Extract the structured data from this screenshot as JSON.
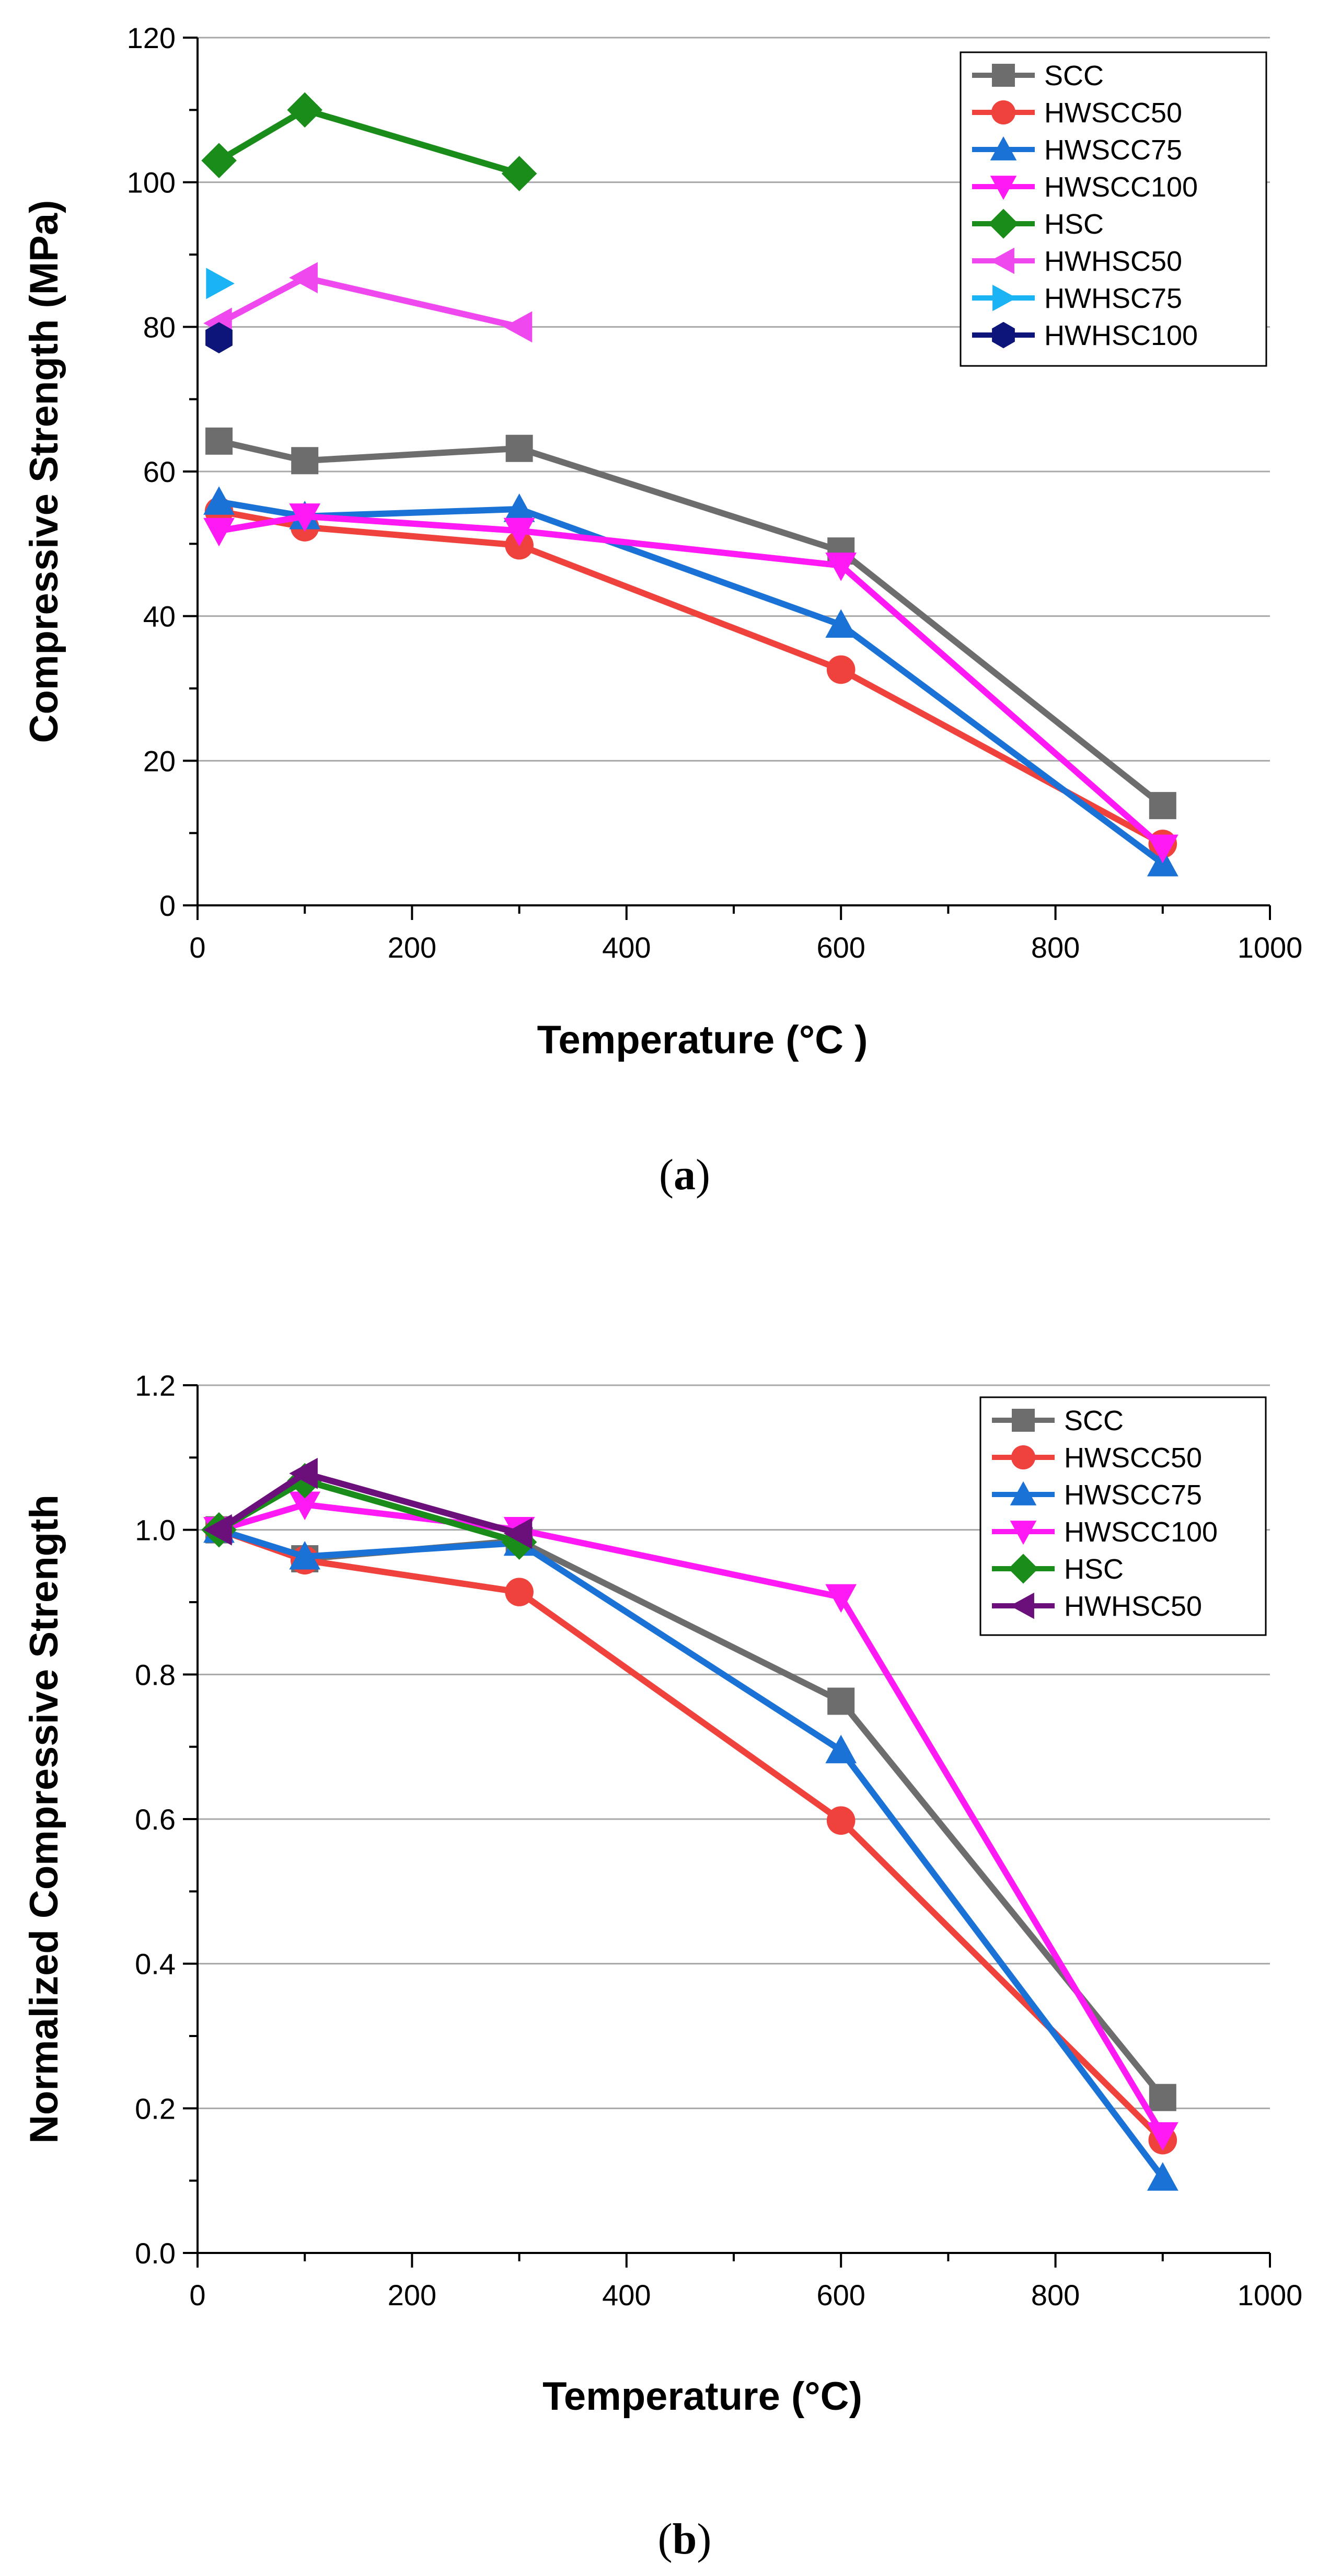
{
  "chart_data": [
    {
      "id": "a",
      "type": "line",
      "panel_label": "a",
      "xlabel": "Temperature (°C )",
      "ylabel": "Compressive Strength (MPa)",
      "xlim": [
        0,
        1000
      ],
      "ylim": [
        0,
        120
      ],
      "xticks": [
        0,
        200,
        400,
        600,
        800,
        1000
      ],
      "yticks": [
        0,
        20,
        40,
        60,
        80,
        100,
        120
      ],
      "grid": true,
      "legend": "top-right",
      "series": [
        {
          "name": "SCC",
          "color": "#6d6d6d",
          "marker": "square",
          "x": [
            20,
            100,
            300,
            600,
            900
          ],
          "y": [
            64.2,
            61.5,
            63.2,
            49.0,
            13.8
          ]
        },
        {
          "name": "HWSCC50",
          "color": "#f0423d",
          "marker": "circle",
          "x": [
            20,
            100,
            300,
            600,
            900
          ],
          "y": [
            54.5,
            52.3,
            49.8,
            32.6,
            8.5
          ]
        },
        {
          "name": "HWSCC75",
          "color": "#1a72d6",
          "marker": "triangle-up",
          "x": [
            20,
            100,
            300,
            600,
            900
          ],
          "y": [
            55.8,
            53.8,
            54.8,
            38.8,
            5.8
          ]
        },
        {
          "name": "HWSCC100",
          "color": "#ff19f5",
          "marker": "triangle-down",
          "x": [
            20,
            100,
            300,
            600,
            900
          ],
          "y": [
            51.8,
            53.8,
            51.8,
            47.0,
            8.0
          ]
        },
        {
          "name": "HSC",
          "color": "#1a8c1a",
          "marker": "diamond",
          "x": [
            20,
            100,
            300
          ],
          "y": [
            103.0,
            110.0,
            101.2
          ]
        },
        {
          "name": "HWHSC50",
          "color": "#ee48ee",
          "marker": "triangle-left",
          "x": [
            20,
            100,
            300
          ],
          "y": [
            80.5,
            86.8,
            80.0
          ]
        },
        {
          "name": "HWHSC75",
          "color": "#1ab4f5",
          "marker": "triangle-right",
          "x": [
            20
          ],
          "y": [
            86.0
          ]
        },
        {
          "name": "HWHSC100",
          "color": "#0d157a",
          "marker": "hexagon",
          "x": [
            20
          ],
          "y": [
            78.5
          ]
        }
      ]
    },
    {
      "id": "b",
      "type": "line",
      "panel_label": "b",
      "xlabel": "Temperature (°C)",
      "ylabel": "Normalized Compressive Strength",
      "xlim": [
        0,
        1000
      ],
      "ylim": [
        0,
        1.2
      ],
      "xticks": [
        0,
        200,
        400,
        600,
        800,
        1000
      ],
      "yticks": [
        0.0,
        0.2,
        0.4,
        0.6,
        0.8,
        1.0,
        1.2
      ],
      "grid": true,
      "legend": "top-right",
      "series": [
        {
          "name": "SCC",
          "color": "#6d6d6d",
          "marker": "square",
          "x": [
            20,
            100,
            300,
            600,
            900
          ],
          "y": [
            1.0,
            0.96,
            0.985,
            0.763,
            0.215
          ]
        },
        {
          "name": "HWSCC50",
          "color": "#f0423d",
          "marker": "circle",
          "x": [
            20,
            100,
            300,
            600,
            900
          ],
          "y": [
            1.0,
            0.958,
            0.914,
            0.598,
            0.156
          ]
        },
        {
          "name": "HWSCC75",
          "color": "#1a72d6",
          "marker": "triangle-up",
          "x": [
            20,
            100,
            300,
            600,
            900
          ],
          "y": [
            1.0,
            0.963,
            0.982,
            0.695,
            0.104
          ]
        },
        {
          "name": "HWSCC100",
          "color": "#ff19f5",
          "marker": "triangle-down",
          "x": [
            20,
            100,
            300,
            600,
            900
          ],
          "y": [
            1.0,
            1.035,
            1.0,
            0.907,
            0.163
          ]
        },
        {
          "name": "HSC",
          "color": "#1a8c1a",
          "marker": "diamond",
          "x": [
            20,
            100,
            300
          ],
          "y": [
            1.0,
            1.068,
            0.983
          ]
        },
        {
          "name": "HWHSC50",
          "color": "#6b0f7a",
          "marker": "triangle-left",
          "x": [
            20,
            100,
            300
          ],
          "y": [
            1.0,
            1.078,
            0.995
          ]
        }
      ]
    }
  ]
}
